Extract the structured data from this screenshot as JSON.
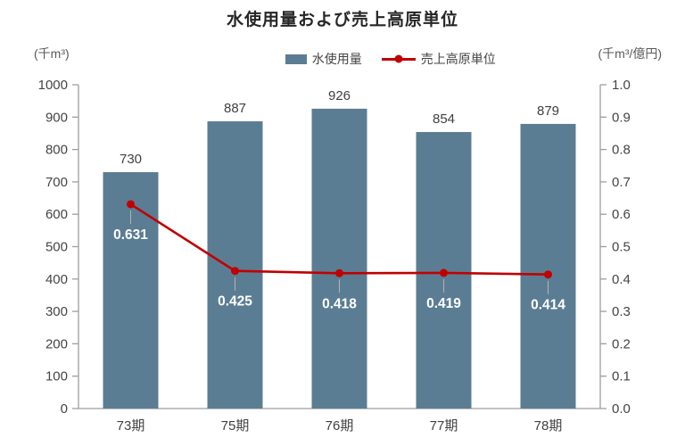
{
  "title": "水使用量および売上高原単位",
  "left_axis_unit": "(千m³)",
  "right_axis_unit": "(千m³/億円)",
  "legend": {
    "bar_label": "水使用量",
    "line_label": "売上高原単位"
  },
  "colors": {
    "bar": "#5b7d93",
    "line": "#c00000",
    "axis": "#9d9d9d",
    "tick_text": "#444444",
    "bar_label_text": "#404040",
    "line_label_text": "#ffffff",
    "leader": "#b3b3b3",
    "title_text": "#262626"
  },
  "chart_data": {
    "type": "combo",
    "title": "水使用量および売上高原単位",
    "categories": [
      "73期",
      "75期",
      "76期",
      "77期",
      "78期"
    ],
    "series": [
      {
        "name": "水使用量",
        "type": "bar",
        "axis": "left",
        "values": [
          730,
          887,
          926,
          854,
          879
        ]
      },
      {
        "name": "売上高原単位",
        "type": "line",
        "axis": "right",
        "values": [
          0.631,
          0.425,
          0.418,
          0.419,
          0.414
        ]
      }
    ],
    "left_axis": {
      "label": "(千m³)",
      "min": 0,
      "max": 1000,
      "step": 100
    },
    "right_axis": {
      "label": "(千m³/億円)",
      "min": 0,
      "max": 1.0,
      "step": 0.1
    },
    "grid": false,
    "legend_position": "top"
  }
}
